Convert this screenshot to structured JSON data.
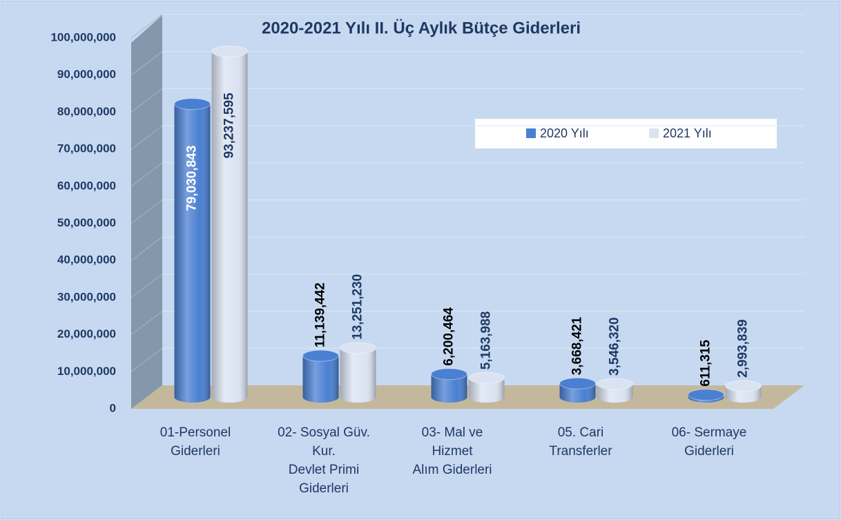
{
  "chart_data": {
    "type": "bar3d",
    "title": "2020-2021 Yılı II. Üç Aylık Bütçe Giderleri",
    "categories": [
      [
        "01-Personel",
        "Giderleri"
      ],
      [
        "02- Sosyal Güv.",
        "Kur.",
        "Devlet Primi",
        "Giderleri"
      ],
      [
        "03- Mal ve",
        "Hizmet",
        "Alım Giderleri"
      ],
      [
        "05. Cari",
        "Transferler"
      ],
      [
        "06- Sermaye",
        "Giderleri"
      ]
    ],
    "series": [
      {
        "name": "2020 Yılı",
        "color": "#4a7fd2",
        "values": [
          79030843,
          11139442,
          6200464,
          3668421,
          611315
        ],
        "value_labels": [
          "79,030,843",
          "11,139,442",
          "6,200,464",
          "3,668,421",
          "611,315"
        ]
      },
      {
        "name": "2021 Yılı",
        "color": "#dbe3f2",
        "values": [
          93237595,
          13251230,
          5163988,
          3546320,
          2993839
        ],
        "value_labels": [
          "93,237,595",
          "13,251,230",
          "5,163,988",
          "3,546,320",
          "2,993,839"
        ]
      }
    ],
    "ylim": [
      0,
      100000000
    ],
    "yticks": [
      0,
      {
        "value": 10000000,
        "label": "10,000,000"
      },
      {
        "value": 20000000,
        "label": "20,000,000"
      },
      {
        "value": 30000000,
        "label": "30,000,000"
      },
      {
        "value": 40000000,
        "label": "40,000,000"
      },
      {
        "value": 50000000,
        "label": "50,000,000"
      },
      {
        "value": 60000000,
        "label": "60,000,000"
      },
      {
        "value": 70000000,
        "label": "70,000,000"
      },
      {
        "value": 80000000,
        "label": "80,000,000"
      },
      {
        "value": 90000000,
        "label": "90,000,000"
      },
      {
        "value": 100000000,
        "label": "100,000,000"
      }
    ],
    "grid": true,
    "legend": "upper right"
  }
}
